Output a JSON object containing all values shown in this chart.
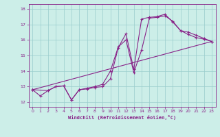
{
  "xlabel": "Windchill (Refroidissement éolien,°C)",
  "bg_color": "#cceee8",
  "line_color": "#882288",
  "grid_color": "#99cccc",
  "xlim": [
    -0.5,
    23.5
  ],
  "ylim": [
    11.7,
    18.3
  ],
  "xticks": [
    0,
    1,
    2,
    3,
    4,
    5,
    6,
    7,
    8,
    9,
    10,
    11,
    12,
    13,
    14,
    15,
    16,
    17,
    18,
    19,
    20,
    21,
    22,
    23
  ],
  "yticks": [
    12,
    13,
    14,
    15,
    16,
    17,
    18
  ],
  "line1_x": [
    0,
    1,
    2,
    3,
    4,
    5,
    6,
    7,
    8,
    9,
    10,
    11,
    12,
    13,
    14,
    15,
    16,
    17,
    18,
    19,
    20,
    21,
    22,
    23
  ],
  "line1_y": [
    12.8,
    12.4,
    12.75,
    13.0,
    13.05,
    12.15,
    12.8,
    12.85,
    12.95,
    13.0,
    13.5,
    15.5,
    16.4,
    14.1,
    17.35,
    17.45,
    17.5,
    17.65,
    17.15,
    16.6,
    16.35,
    16.15,
    16.05,
    15.9
  ],
  "line2_x": [
    0,
    2,
    3,
    4,
    5,
    6,
    7,
    8,
    9,
    10,
    11,
    12,
    13,
    14,
    15,
    16,
    17,
    18,
    19,
    20,
    21,
    22,
    23
  ],
  "line2_y": [
    12.8,
    12.75,
    13.0,
    13.05,
    12.15,
    12.8,
    12.9,
    13.0,
    13.15,
    14.0,
    15.55,
    16.0,
    13.9,
    15.35,
    17.4,
    17.45,
    17.55,
    17.2,
    16.6,
    16.5,
    16.3,
    16.1,
    15.9
  ],
  "line3_x": [
    0,
    23
  ],
  "line3_y": [
    12.8,
    15.9
  ]
}
